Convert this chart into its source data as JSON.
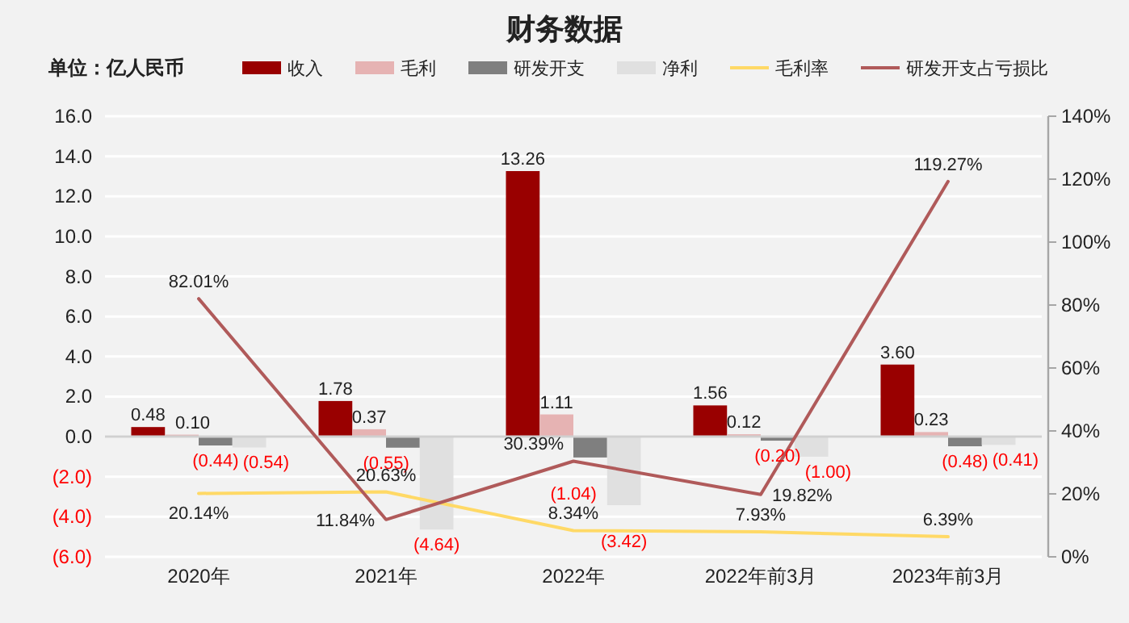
{
  "chart_data": {
    "type": "bar",
    "title": "财务数据",
    "annotations": [
      "单位：亿人民币"
    ],
    "categories": [
      "2020年",
      "2021年",
      "2022年",
      "2022年前3月",
      "2023年前3月"
    ],
    "series": [
      {
        "name": "收入",
        "color": "#990000",
        "values": [
          0.48,
          1.78,
          13.26,
          1.56,
          3.6
        ],
        "value_labels": [
          "0.48",
          "1.78",
          "13.26",
          "1.56",
          "3.60"
        ]
      },
      {
        "name": "毛利",
        "color": "#e6b3b3",
        "values": [
          0.1,
          0.37,
          1.11,
          0.12,
          0.23
        ],
        "value_labels": [
          "0.10",
          "0.37",
          "1.11",
          "0.12",
          "0.23"
        ]
      },
      {
        "name": "研发开支",
        "color": "#7f7f7f",
        "values": [
          -0.44,
          -0.55,
          -1.04,
          -0.2,
          -0.48
        ],
        "value_labels": [
          "(0.44)",
          "(0.55)",
          "(1.04)",
          "(0.20)",
          "(0.48)"
        ]
      },
      {
        "name": "净利",
        "color": "#e0e0e0",
        "values": [
          -0.54,
          -4.64,
          -3.42,
          -1.0,
          -0.41
        ],
        "value_labels": [
          "(0.54)",
          "(4.64)",
          "(3.42)",
          "(1.00)",
          "(0.41)"
        ]
      },
      {
        "name": "毛利率",
        "type": "line",
        "axis": "y2",
        "color": "#ffd966",
        "values": [
          20.14,
          20.63,
          8.34,
          7.93,
          6.39
        ],
        "value_labels": [
          "20.14%",
          "20.63%",
          "8.34%",
          "7.93%",
          "6.39%"
        ]
      },
      {
        "name": "研发开支占亏损比",
        "type": "line",
        "axis": "y2",
        "color": "#b05a5a",
        "values": [
          82.01,
          11.84,
          30.39,
          19.82,
          119.27
        ],
        "value_labels": [
          "82.01%",
          "11.84%",
          "30.39%",
          "19.82%",
          "119.27%"
        ]
      }
    ],
    "ylim": [
      -6,
      16
    ],
    "yticks": [
      {
        "value": -6,
        "label": "(6.0)"
      },
      {
        "value": -4,
        "label": "(4.0)"
      },
      {
        "value": -2,
        "label": "(2.0)"
      },
      {
        "value": 0,
        "label": "0.0"
      },
      {
        "value": 2,
        "label": "2.0"
      },
      {
        "value": 4,
        "label": "4.0"
      },
      {
        "value": 6,
        "label": "6.0"
      },
      {
        "value": 8,
        "label": "8.0"
      },
      {
        "value": 10,
        "label": "10.0"
      },
      {
        "value": 12,
        "label": "12.0"
      },
      {
        "value": 14,
        "label": "14.0"
      },
      {
        "value": 16,
        "label": "16.0"
      }
    ],
    "y2lim": [
      0,
      140
    ],
    "y2ticks": [
      {
        "value": 0,
        "label": "0%"
      },
      {
        "value": 20,
        "label": "20%"
      },
      {
        "value": 40,
        "label": "40%"
      },
      {
        "value": 60,
        "label": "60%"
      },
      {
        "value": 80,
        "label": "80%"
      },
      {
        "value": 100,
        "label": "100%"
      },
      {
        "value": 120,
        "label": "120%"
      },
      {
        "value": 140,
        "label": "140%"
      }
    ],
    "grid": "y",
    "legend": "top",
    "line_style": "solid"
  }
}
